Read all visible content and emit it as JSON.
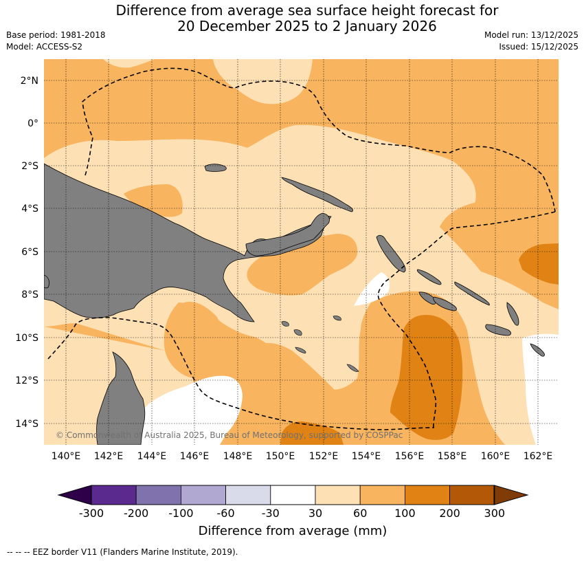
{
  "title": {
    "line1": "Difference from average sea surface height forecast for",
    "line2": "20 December 2025 to 2 January 2026"
  },
  "meta": {
    "base_period": "Base period: 1981-2018",
    "model": "Model: ACCESS-S2",
    "model_run": "Model run: 13/12/2025",
    "issued": "Issued: 15/12/2025"
  },
  "map": {
    "lon_labels": [
      "140°E",
      "142°E",
      "144°E",
      "146°E",
      "148°E",
      "150°E",
      "152°E",
      "154°E",
      "156°E",
      "158°E",
      "160°E",
      "162°E"
    ],
    "lat_labels": [
      "2°N",
      "0°",
      "2°S",
      "4°S",
      "6°S",
      "8°S",
      "10°S",
      "12°S",
      "14°S"
    ],
    "copyright": "© Commonwealth of Australia 2025, Bureau of Meteorology, supported by COSPPac",
    "land_color": "#808080"
  },
  "colorbar": {
    "ticks": [
      "-300",
      "-200",
      "-100",
      "-60",
      "-30",
      "30",
      "60",
      "100",
      "200",
      "300"
    ],
    "colors": [
      "#2d0049",
      "#5a2a8f",
      "#8072ad",
      "#b1a8d1",
      "#d9dbeb",
      "#ffffff",
      "#fde0b4",
      "#f9b45f",
      "#e08214",
      "#b35806",
      "#7f3b08"
    ],
    "label": "Difference from average (mm)"
  },
  "footnote": "--  --  -- EEZ border V11 (Flanders Marine Institute, 2019)."
}
